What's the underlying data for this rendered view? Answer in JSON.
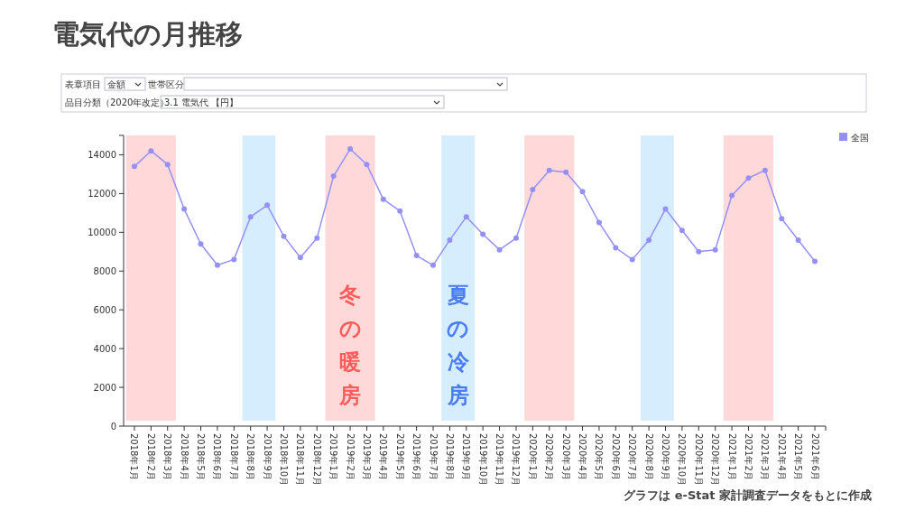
{
  "chart_data": {
    "type": "line",
    "title": "電気代の月推移",
    "categories": [
      "2018年1月",
      "2018年2月",
      "2018年3月",
      "2018年4月",
      "2018年5月",
      "2018年6月",
      "2018年7月",
      "2018年8月",
      "2018年9月",
      "2018年10月",
      "2018年11月",
      "2018年12月",
      "2019年1月",
      "2019年2月",
      "2019年3月",
      "2019年4月",
      "2019年5月",
      "2019年6月",
      "2019年7月",
      "2019年8月",
      "2019年9月",
      "2019年10月",
      "2019年11月",
      "2019年12月",
      "2020年1月",
      "2020年2月",
      "2020年3月",
      "2020年4月",
      "2020年5月",
      "2020年6月",
      "2020年7月",
      "2020年8月",
      "2020年9月",
      "2020年10月",
      "2020年11月",
      "2020年12月",
      "2021年1月",
      "2021年2月",
      "2021年3月",
      "2021年4月",
      "2021年5月",
      "2021年6月"
    ],
    "series": [
      {
        "name": "全国",
        "color": "#9590f5",
        "values": [
          13400,
          14200,
          13500,
          11200,
          9400,
          8300,
          8600,
          10800,
          11400,
          9800,
          8700,
          9700,
          12900,
          14300,
          13500,
          11700,
          11100,
          8800,
          8300,
          9600,
          10800,
          9900,
          9100,
          9700,
          12200,
          13200,
          13100,
          12100,
          10500,
          9200,
          8600,
          9600,
          11200,
          10100,
          9000,
          9100,
          11900,
          12800,
          13200,
          10700,
          9600,
          8500
        ]
      }
    ],
    "ylim": [
      0,
      15000
    ],
    "yticks": [
      0,
      2000,
      4000,
      6000,
      8000,
      10000,
      12000,
      14000
    ],
    "bands": [
      {
        "axis": "x",
        "from": "2018年1月",
        "to": "2018年3月",
        "color": "#ffd9d9"
      },
      {
        "axis": "x",
        "from": "2018年8月",
        "to": "2018年9月",
        "color": "#d5edfc"
      },
      {
        "axis": "x",
        "from": "2019年1月",
        "to": "2019年3月",
        "color": "#ffd9d9",
        "label": "冬の暖房"
      },
      {
        "axis": "x",
        "from": "2019年8月",
        "to": "2019年9月",
        "color": "#d5edfc",
        "label": "夏の冷房"
      },
      {
        "axis": "x",
        "from": "2020年1月",
        "to": "2020年3月",
        "color": "#ffd9d9"
      },
      {
        "axis": "x",
        "from": "2020年8月",
        "to": "2020年9月",
        "color": "#d5edfc"
      },
      {
        "axis": "x",
        "from": "2021年1月",
        "to": "2021年3月",
        "color": "#ffd9d9"
      }
    ],
    "marker": "circle",
    "grid": false,
    "legend": "top right",
    "annotations": [
      "表章項目",
      "金額",
      "世帯区分",
      "品目分類（2020年改定）",
      "3.1 電気代 【円】",
      "グラフは e-Stat 家計調査データをもとに作成"
    ]
  }
}
